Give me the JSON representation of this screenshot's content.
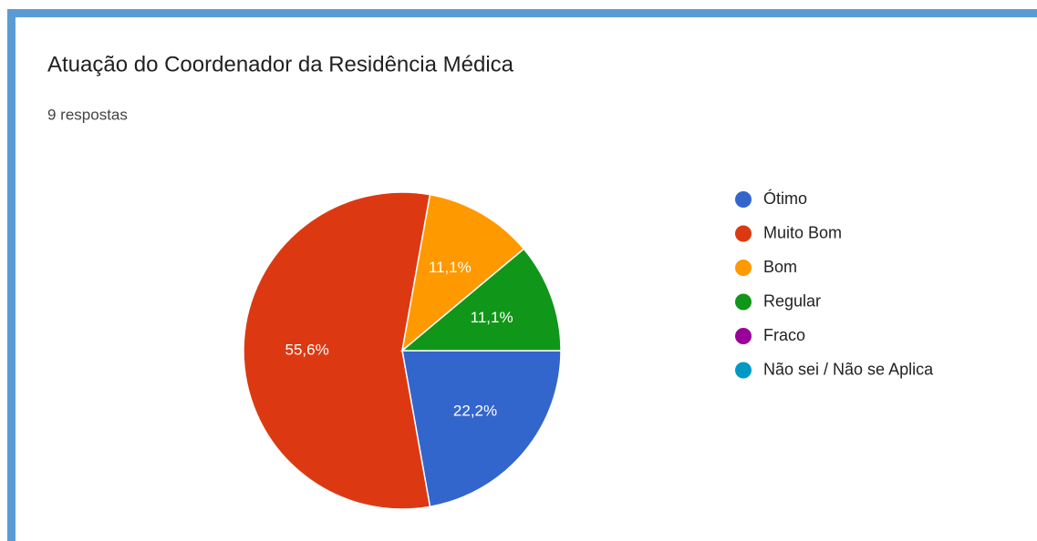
{
  "chart_data": {
    "type": "pie",
    "title": "Atuação do Coordenador da Residência Médica",
    "subtitle": "9 respostas",
    "categories": [
      "Ótimo",
      "Muito Bom",
      "Bom",
      "Regular",
      "Fraco",
      "Não sei / Não se Aplica"
    ],
    "values": [
      22.2,
      55.6,
      11.1,
      11.1,
      0,
      0
    ],
    "value_labels": [
      "22,2%",
      "55,6%",
      "11,1%",
      "11,1%",
      null,
      null
    ],
    "colors": [
      "#3366cc",
      "#dc3912",
      "#ff9900",
      "#109618",
      "#990099",
      "#0099c6"
    ],
    "legend": "right"
  }
}
